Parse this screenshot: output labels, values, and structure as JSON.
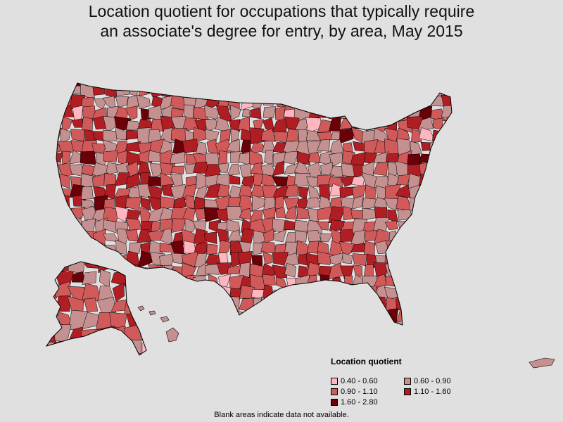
{
  "title": {
    "line1": "Location quotient for occupations that typically require",
    "line2": "an associate's degree for entry, by area, May 2015"
  },
  "legend": {
    "title": "Location quotient",
    "items": [
      {
        "label": "0.40 - 0.60",
        "color": "#ffb6c1"
      },
      {
        "label": "0.60 - 0.90",
        "color": "#c49090"
      },
      {
        "label": "0.90 - 1.10",
        "color": "#d05a5a"
      },
      {
        "label": "1.10 - 1.60",
        "color": "#b01e24"
      },
      {
        "label": "1.60 - 2.80",
        "color": "#6a0008"
      }
    ]
  },
  "footnote": "Blank areas indicate data not available.",
  "colors": {
    "background": "#e0e0e0",
    "border": "#000000",
    "blank": "#ffffff"
  }
}
